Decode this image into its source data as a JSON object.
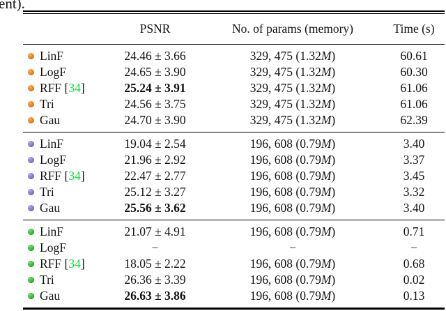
{
  "caption_fragment": "ent).",
  "table": {
    "headers": {
      "method": "",
      "psnr": "PSNR",
      "params": "No. of params (memory)",
      "time": "Time (s)"
    },
    "citation_color": "#0ADE3C",
    "punct": {
      "bracket_open": " [",
      "bracket_close": "]",
      "paren_open": " (",
      "paren_close": ")",
      "dash": "−"
    },
    "groups": [
      {
        "name": "orange",
        "bullet": {
          "light": "#F9AE5C",
          "base": "#EC7D17",
          "dark": "#9C5509"
        },
        "rows": [
          {
            "method": "LinF",
            "cite": null,
            "psnr": "24.46 ± 3.66",
            "psnr_bold": false,
            "params_count": "329, 475",
            "memory_value": "1.32",
            "memory_unit": "M",
            "time": "60.61"
          },
          {
            "method": "LogF",
            "cite": null,
            "psnr": "24.65 ± 3.90",
            "psnr_bold": false,
            "params_count": "329, 475",
            "memory_value": "1.32",
            "memory_unit": "M",
            "time": "60.30"
          },
          {
            "method": "RFF",
            "cite": "34",
            "psnr": "25.24 ± 3.91",
            "psnr_bold": true,
            "params_count": "329, 475",
            "memory_value": "1.32",
            "memory_unit": "M",
            "time": "61.06"
          },
          {
            "method": "Tri",
            "cite": null,
            "psnr": "24.56 ± 3.75",
            "psnr_bold": false,
            "params_count": "329, 475",
            "memory_value": "1.32",
            "memory_unit": "M",
            "time": "61.06"
          },
          {
            "method": "Gau",
            "cite": null,
            "psnr": "24.70 ± 3.90",
            "psnr_bold": false,
            "params_count": "329, 475",
            "memory_value": "1.32",
            "memory_unit": "M",
            "time": "62.39"
          }
        ]
      },
      {
        "name": "purple",
        "bullet": {
          "light": "#B4A7E6",
          "base": "#8470CC",
          "dark": "#57449B"
        },
        "rows": [
          {
            "method": "LinF",
            "cite": null,
            "psnr": "19.04 ± 2.54",
            "psnr_bold": false,
            "params_count": "196, 608",
            "memory_value": "0.79",
            "memory_unit": "M",
            "time": "3.40"
          },
          {
            "method": "LogF",
            "cite": null,
            "psnr": "21.96 ± 2.92",
            "psnr_bold": false,
            "params_count": "196, 608",
            "memory_value": "0.79",
            "memory_unit": "M",
            "time": "3.37"
          },
          {
            "method": "RFF",
            "cite": "34",
            "psnr": "22.47 ± 2.77",
            "psnr_bold": false,
            "params_count": "196, 608",
            "memory_value": "0.79",
            "memory_unit": "M",
            "time": "3.45"
          },
          {
            "method": "Tri",
            "cite": null,
            "psnr": "25.12 ± 3.27",
            "psnr_bold": false,
            "params_count": "196, 608",
            "memory_value": "0.79",
            "memory_unit": "M",
            "time": "3.32"
          },
          {
            "method": "Gau",
            "cite": null,
            "psnr": "25.56 ± 3.62",
            "psnr_bold": true,
            "params_count": "196, 608",
            "memory_value": "0.79",
            "memory_unit": "M",
            "time": "3.40"
          }
        ]
      },
      {
        "name": "green",
        "bullet": {
          "light": "#70E070",
          "base": "#28B828",
          "dark": "#0C7D0C"
        },
        "rows": [
          {
            "method": "LinF",
            "cite": null,
            "psnr": "21.07 ± 4.91",
            "psnr_bold": false,
            "params_count": "196, 608",
            "memory_value": "0.79",
            "memory_unit": "M",
            "time": "0.71"
          },
          {
            "method": "LogF",
            "cite": null,
            "psnr": "−",
            "psnr_bold": false,
            "params_count": null,
            "memory_value": null,
            "memory_unit": null,
            "time": "−"
          },
          {
            "method": "RFF",
            "cite": "34",
            "psnr": "18.05 ± 2.22",
            "psnr_bold": false,
            "params_count": "196, 608",
            "memory_value": "0.79",
            "memory_unit": "M",
            "time": "0.68"
          },
          {
            "method": "Tri",
            "cite": null,
            "psnr": "26.36 ± 3.39",
            "psnr_bold": false,
            "params_count": "196, 608",
            "memory_value": "0.79",
            "memory_unit": "M",
            "time": "0.02"
          },
          {
            "method": "Gau",
            "cite": null,
            "psnr": "26.63 ± 3.86",
            "psnr_bold": true,
            "params_count": "196, 608",
            "memory_value": "0.79",
            "memory_unit": "M",
            "time": "0.13"
          }
        ]
      }
    ]
  }
}
